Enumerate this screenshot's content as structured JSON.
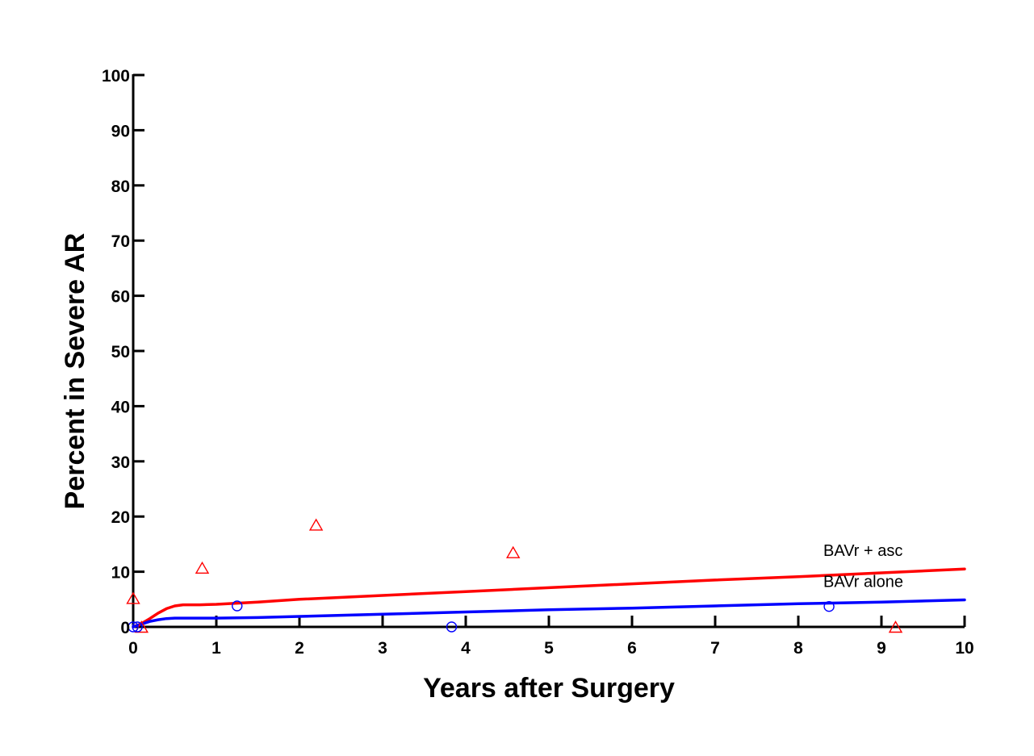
{
  "chart_data": {
    "type": "line",
    "title": "",
    "xlabel": "Years after Surgery",
    "ylabel": "Percent in Severe AR",
    "xlim": [
      0,
      10
    ],
    "ylim": [
      0,
      100
    ],
    "x_ticks": [
      0,
      1,
      2,
      3,
      4,
      5,
      6,
      7,
      8,
      9,
      10
    ],
    "y_ticks": [
      0,
      10,
      20,
      30,
      40,
      50,
      60,
      70,
      80,
      90,
      100
    ],
    "grid": false,
    "legend": "none",
    "series": [
      {
        "name": "BAVr + asc",
        "color": "#ff0000",
        "curve": {
          "x": [
            0,
            0.1,
            0.2,
            0.3,
            0.4,
            0.5,
            0.6,
            0.8,
            1,
            1.5,
            2,
            3,
            4,
            5,
            6,
            7,
            8,
            9,
            10
          ],
          "y": [
            0,
            0.6,
            1.5,
            2.5,
            3.3,
            3.8,
            4,
            4,
            4.1,
            4.5,
            5,
            5.7,
            6.4,
            7.1,
            7.8,
            8.5,
            9.1,
            9.8,
            10.5
          ]
        },
        "points": {
          "marker": "triangle",
          "x": [
            0,
            0.1,
            0.83,
            2.2,
            4.57,
            9.17
          ],
          "y": [
            5.2,
            0,
            10.7,
            18.5,
            13.5,
            0
          ]
        }
      },
      {
        "name": "BAVr alone",
        "color": "#0000ff",
        "curve": {
          "x": [
            0,
            0.1,
            0.2,
            0.3,
            0.4,
            0.5,
            0.6,
            0.8,
            1,
            1.5,
            2,
            3,
            4,
            5,
            6,
            7,
            8,
            9,
            10
          ],
          "y": [
            0,
            0.5,
            1,
            1.3,
            1.5,
            1.6,
            1.6,
            1.6,
            1.6,
            1.7,
            1.9,
            2.3,
            2.7,
            3.1,
            3.4,
            3.8,
            4.2,
            4.5,
            4.9
          ]
        },
        "points": {
          "marker": "circle",
          "x": [
            0,
            0.05,
            1.25,
            3.83,
            8.37
          ],
          "y": [
            0,
            0,
            3.8,
            0,
            3.7
          ]
        }
      }
    ]
  }
}
